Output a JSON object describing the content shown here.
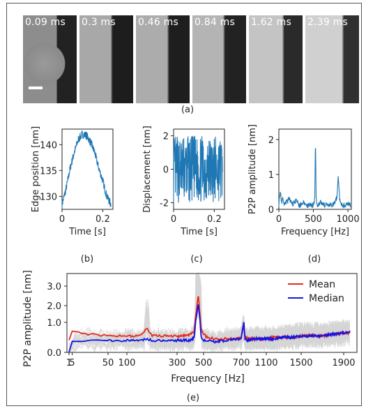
{
  "figure": {
    "panel_labels": {
      "a": "(a)",
      "b": "(b)",
      "c": "(c)",
      "d": "(d)",
      "e": "(e)"
    },
    "time_labels": [
      "0.09 ms",
      "0.3 ms",
      "0.46 ms",
      "0.84 ms",
      "1.62 ms",
      "2.39 ms"
    ]
  },
  "chart_data": [
    {
      "type": "line",
      "panel": "(b)",
      "xlabel": "Time [s]",
      "ylabel": "Edge position [nm]",
      "xlim": [
        0,
        0.25
      ],
      "ylim": [
        127.5,
        143
      ],
      "xticks": [
        0,
        0.2
      ],
      "yticks": [
        130,
        135,
        140
      ],
      "color": "#1f77b4",
      "x": [
        0.0,
        0.02,
        0.04,
        0.06,
        0.08,
        0.1,
        0.12,
        0.14,
        0.16,
        0.18,
        0.2,
        0.22,
        0.24
      ],
      "y": [
        128.5,
        131.5,
        135.5,
        138.5,
        141.0,
        142.0,
        141.8,
        140.5,
        138.5,
        135.5,
        133.0,
        130.0,
        128.5
      ]
    },
    {
      "type": "line",
      "panel": "(c)",
      "xlabel": "Time [s]",
      "ylabel": "Displacement [nm]",
      "xlim": [
        0,
        0.25
      ],
      "ylim": [
        -2.4,
        2.4
      ],
      "xticks": [
        0,
        0.2
      ],
      "yticks": [
        -2,
        0,
        2
      ],
      "color": "#1f77b4",
      "noise_amplitude": 2.0
    },
    {
      "type": "line",
      "panel": "(d)",
      "xlabel": "Frequency [Hz]",
      "ylabel": "P2P amplitude [nm]",
      "xlim": [
        0,
        1050
      ],
      "ylim": [
        0,
        2.3
      ],
      "xticks": [
        0,
        500,
        1000
      ],
      "yticks": [
        0,
        1,
        2
      ],
      "color": "#1f77b4",
      "x": [
        0,
        20,
        40,
        60,
        80,
        100,
        150,
        200,
        250,
        300,
        350,
        400,
        450,
        500,
        520,
        530,
        540,
        560,
        600,
        700,
        800,
        840,
        860,
        880,
        920,
        1000,
        1040
      ],
      "y": [
        0.15,
        0.5,
        0.2,
        0.35,
        0.15,
        0.2,
        0.3,
        0.15,
        0.25,
        0.1,
        0.2,
        0.1,
        0.15,
        0.1,
        0.3,
        2.1,
        0.3,
        0.12,
        0.2,
        0.1,
        0.15,
        0.35,
        0.95,
        0.3,
        0.1,
        0.15,
        0.1
      ]
    },
    {
      "type": "line",
      "panel": "(e)",
      "xlabel": "Frequency [Hz]",
      "ylabel": "P2P amplitude [nm]",
      "xlim": [
        0,
        2000
      ],
      "xticks": [
        1,
        5,
        50,
        100,
        300,
        500,
        700,
        1100,
        1500,
        1900
      ],
      "yticks": [
        0.0,
        1.0,
        2.0,
        3.0
      ],
      "legend_position": "top-right",
      "series": [
        {
          "name": "Mean",
          "color": "#e8281e",
          "x": [
            1,
            5,
            20,
            50,
            100,
            150,
            180,
            200,
            250,
            300,
            350,
            400,
            430,
            460,
            480,
            500,
            520,
            560,
            620,
            700,
            740,
            760,
            800,
            900,
            1000,
            1100,
            1200,
            1300,
            1400,
            1500,
            1600,
            1700,
            1800,
            1900,
            1950
          ],
          "y": [
            0.45,
            0.7,
            0.6,
            0.55,
            0.55,
            0.55,
            0.8,
            0.55,
            0.55,
            0.55,
            0.55,
            0.6,
            0.7,
            2.6,
            0.8,
            0.6,
            0.5,
            0.45,
            0.45,
            0.5,
            1.0,
            0.5,
            0.45,
            0.45,
            0.45,
            0.45,
            0.5,
            0.5,
            0.5,
            0.55,
            0.55,
            0.55,
            0.6,
            0.65,
            0.65
          ]
        },
        {
          "name": "Median",
          "color": "#1414e6",
          "x": [
            1,
            5,
            20,
            50,
            100,
            150,
            180,
            200,
            250,
            300,
            350,
            400,
            430,
            460,
            480,
            500,
            520,
            560,
            620,
            700,
            740,
            760,
            800,
            900,
            1000,
            1100,
            1200,
            1300,
            1400,
            1500,
            1600,
            1700,
            1800,
            1900,
            1950
          ],
          "y": [
            0.05,
            0.35,
            0.4,
            0.4,
            0.4,
            0.4,
            0.45,
            0.4,
            0.4,
            0.4,
            0.4,
            0.4,
            0.5,
            2.1,
            0.55,
            0.4,
            0.4,
            0.35,
            0.4,
            0.45,
            1.0,
            0.45,
            0.4,
            0.45,
            0.45,
            0.45,
            0.45,
            0.5,
            0.5,
            0.55,
            0.55,
            0.55,
            0.6,
            0.65,
            0.7
          ]
        }
      ]
    }
  ]
}
